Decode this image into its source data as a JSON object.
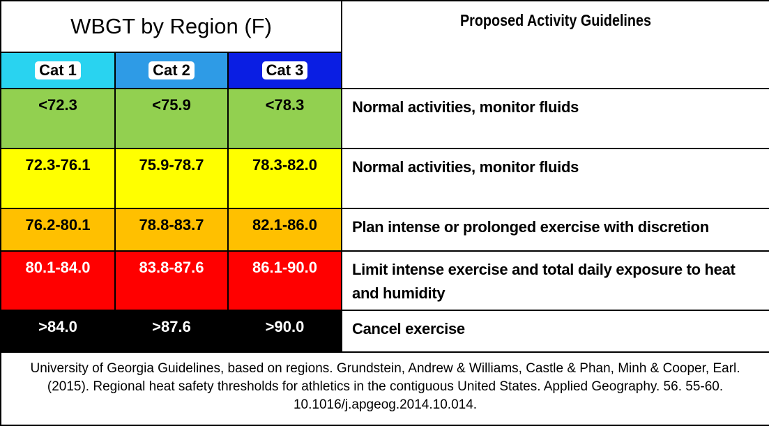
{
  "header": {
    "title": "WBGT by Region (F)",
    "guidelines_heading": "Proposed Activity Guidelines"
  },
  "categories": [
    {
      "label": "Cat 1",
      "color": "#29d3f0"
    },
    {
      "label": "Cat 2",
      "color": "#2e9be6"
    },
    {
      "label": "Cat 3",
      "color": "#0a1ee3"
    }
  ],
  "rows": [
    {
      "bg": "#92d050",
      "text_color": "#000000",
      "values": [
        "<72.3",
        "<75.9",
        "<78.3"
      ],
      "guideline": "Normal activities, monitor fluids"
    },
    {
      "bg": "#ffff00",
      "text_color": "#000000",
      "values": [
        "72.3-76.1",
        "75.9-78.7",
        "78.3-82.0"
      ],
      "guideline": "Normal activities, monitor fluids"
    },
    {
      "bg": "#ffc000",
      "text_color": "#000000",
      "values": [
        "76.2-80.1",
        "78.8-83.7",
        "82.1-86.0"
      ],
      "guideline": "Plan intense or prolonged exercise with discretion"
    },
    {
      "bg": "#ff0000",
      "text_color": "#ffffff",
      "values": [
        "80.1-84.0",
        "83.8-87.6",
        "86.1-90.0"
      ],
      "guideline": "Limit intense exercise and total daily exposure to heat and humidity"
    },
    {
      "bg": "#000000",
      "text_color": "#ffffff",
      "values": [
        ">84.0",
        ">87.6",
        ">90.0"
      ],
      "guideline": "Cancel exercise"
    }
  ],
  "footer": {
    "citation": "University of Georgia Guidelines, based on regions. Grundstein, Andrew & Williams, Castle & Phan, Minh & Cooper, Earl. (2015). Regional heat safety thresholds for athletics in the contiguous United States. Applied Geography. 56. 55-60. 10.1016/j.apgeog.2014.10.014."
  }
}
